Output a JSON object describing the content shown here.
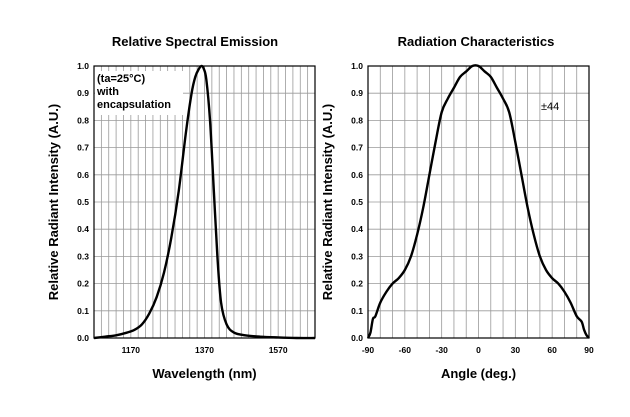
{
  "chart_data": [
    {
      "type": "line",
      "title": "Relative Spectral Emission",
      "xlabel": "Wavelength (nm)",
      "ylabel": "Relative Radiant Intensity (A.U.)",
      "xlim": [
        1070,
        1670
      ],
      "ylim": [
        0,
        1.0
      ],
      "x_ticks": [
        1170,
        1370,
        1570
      ],
      "y_ticks": [
        "0.0",
        "0.1",
        "0.2",
        "0.3",
        "0.4",
        "0.5",
        "0.6",
        "0.7",
        "0.8",
        "0.9",
        "1.0"
      ],
      "grid": true,
      "annotation": [
        "(ta=25°C)",
        "with",
        "encapsulation"
      ],
      "series": [
        {
          "x": [
            1070,
            1100,
            1130,
            1160,
            1180,
            1200,
            1220,
            1240,
            1260,
            1280,
            1300,
            1320,
            1335,
            1345,
            1355,
            1362,
            1368,
            1375,
            1385,
            1395,
            1405,
            1415,
            1430,
            1450,
            1480,
            1520,
            1570,
            1620,
            1670
          ],
          "y": [
            0.0,
            0.005,
            0.01,
            0.02,
            0.03,
            0.05,
            0.09,
            0.15,
            0.24,
            0.37,
            0.54,
            0.76,
            0.9,
            0.96,
            0.99,
            1.0,
            0.99,
            0.95,
            0.8,
            0.55,
            0.3,
            0.13,
            0.05,
            0.02,
            0.01,
            0.005,
            0.002,
            0.0,
            0.0
          ]
        }
      ]
    },
    {
      "type": "line",
      "title": "Radiation Characteristics",
      "xlabel": "Angle (deg.)",
      "ylabel": "Relative Radiant Intensity (A.U.)",
      "xlim": [
        -90,
        90
      ],
      "ylim": [
        0,
        1.0
      ],
      "x_ticks": [
        -90,
        -60,
        -30,
        0,
        30,
        60,
        90
      ],
      "y_ticks": [
        "0.0",
        "0.1",
        "0.2",
        "0.3",
        "0.4",
        "0.5",
        "0.6",
        "0.7",
        "0.8",
        "0.9",
        "1.0"
      ],
      "grid": true,
      "annotation": "±44",
      "series": [
        {
          "x": [
            -90,
            -88,
            -86,
            -84,
            -80,
            -75,
            -70,
            -65,
            -60,
            -55,
            -50,
            -45,
            -40,
            -35,
            -30,
            -25,
            -20,
            -15,
            -10,
            -5,
            0,
            5,
            10,
            15,
            20,
            25,
            30,
            35,
            40,
            45,
            50,
            55,
            60,
            65,
            70,
            75,
            80,
            84,
            86,
            88,
            90
          ],
          "y": [
            0.0,
            0.02,
            0.07,
            0.08,
            0.13,
            0.17,
            0.2,
            0.22,
            0.25,
            0.3,
            0.38,
            0.48,
            0.6,
            0.72,
            0.83,
            0.88,
            0.92,
            0.96,
            0.98,
            1.0,
            1.0,
            0.98,
            0.96,
            0.92,
            0.88,
            0.83,
            0.72,
            0.6,
            0.48,
            0.38,
            0.3,
            0.25,
            0.22,
            0.2,
            0.17,
            0.13,
            0.08,
            0.06,
            0.03,
            0.01,
            0.0
          ]
        }
      ]
    }
  ]
}
